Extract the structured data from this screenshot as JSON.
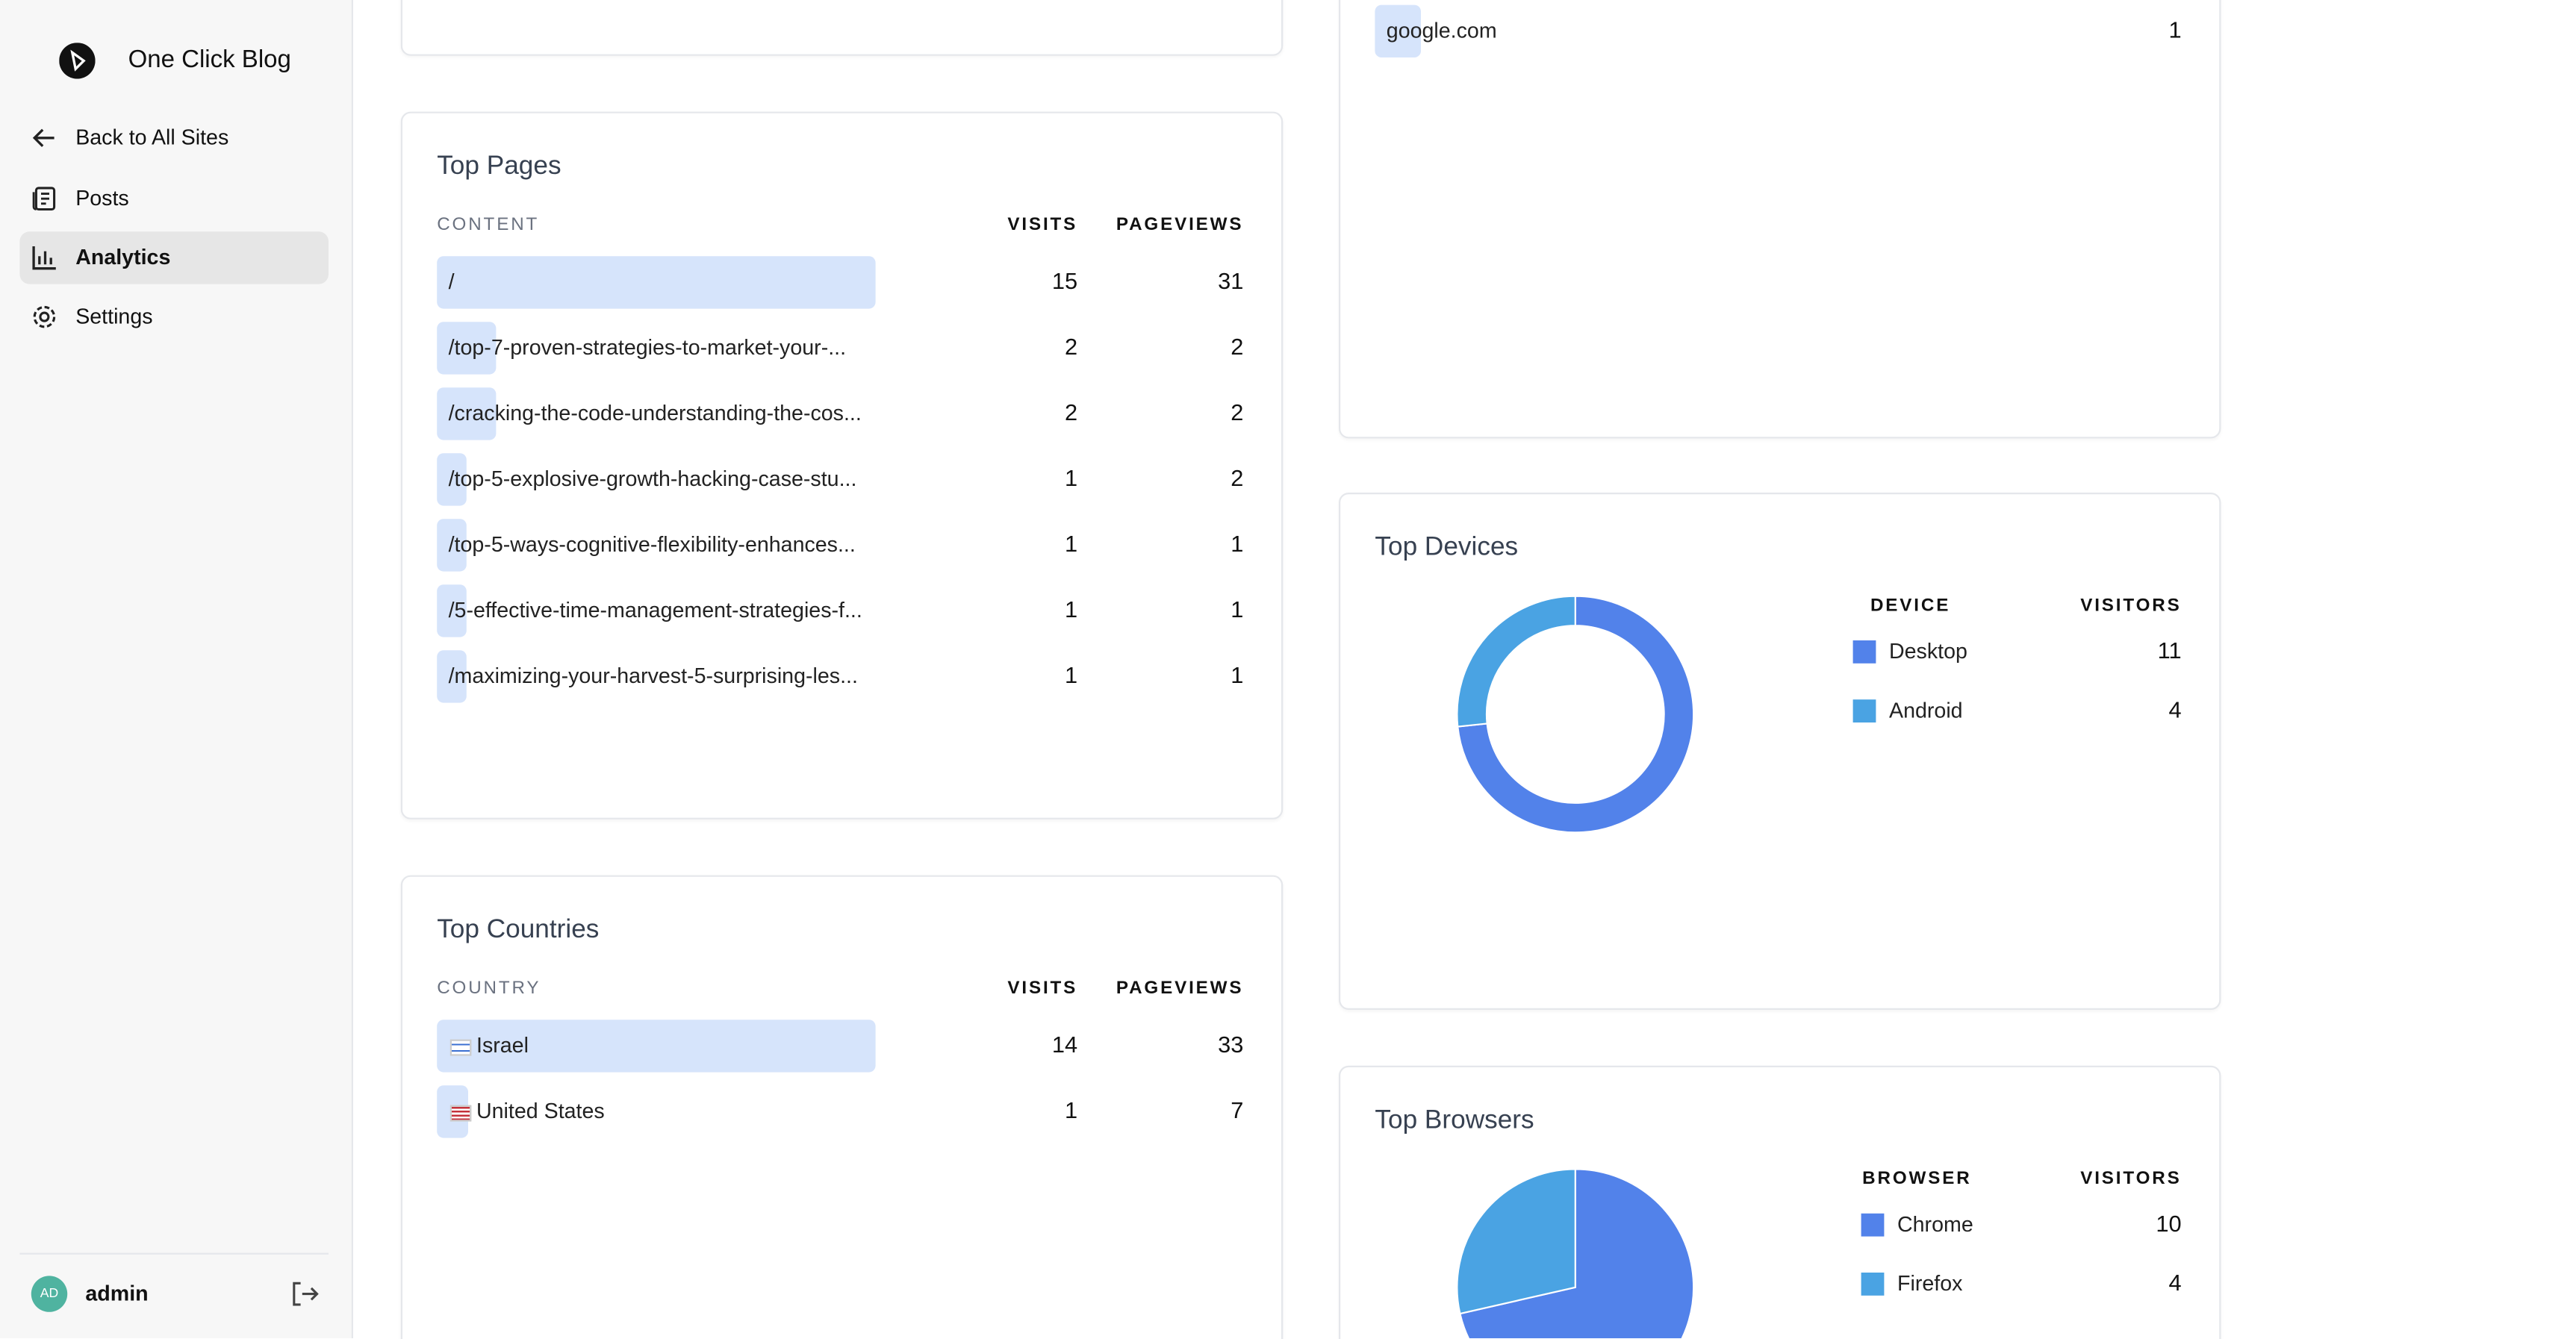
{
  "sidebar": {
    "site_name": "One Click Blog",
    "nav": [
      "Back to All Sites",
      "Posts",
      "Analytics",
      "Settings"
    ],
    "active": 2,
    "user": {
      "initials": "AD",
      "name": "admin"
    }
  },
  "referrers": {
    "rows": [
      {
        "name": "google.com",
        "visits": 1
      }
    ]
  },
  "top_pages": {
    "title": "Top Pages",
    "columns": [
      "CONTENT",
      "VISITS",
      "PAGEVIEWS"
    ],
    "rows": [
      [
        "/",
        15,
        31
      ],
      [
        "/top-7-proven-strategies-to-market-your-...",
        2,
        2
      ],
      [
        "/cracking-the-code-understanding-the-cos...",
        2,
        2
      ],
      [
        "/top-5-explosive-growth-hacking-case-stu...",
        1,
        2
      ],
      [
        "/top-5-ways-cognitive-flexibility-enhances...",
        1,
        1
      ],
      [
        "/5-effective-time-management-strategies-f...",
        1,
        1
      ],
      [
        "/maximizing-your-harvest-5-surprising-les...",
        1,
        1
      ]
    ]
  },
  "top_countries": {
    "title": "Top Countries",
    "columns": [
      "COUNTRY",
      "VISITS",
      "PAGEVIEWS"
    ],
    "rows": [
      [
        "Israel",
        14,
        33
      ],
      [
        "United States",
        1,
        7
      ]
    ]
  },
  "top_devices": {
    "title": "Top Devices",
    "columns": [
      "DEVICE",
      "VISITORS"
    ],
    "rows": [
      {
        "name": "Desktop",
        "visitors": 11,
        "color": "#5282ea"
      },
      {
        "name": "Android",
        "visitors": 4,
        "color": "#4aa3e3"
      }
    ]
  },
  "top_browsers": {
    "title": "Top Browsers",
    "columns": [
      "BROWSER",
      "VISITORS"
    ],
    "rows": [
      {
        "name": "Chrome",
        "visitors": 10,
        "color": "#5282ea"
      },
      {
        "name": "Firefox",
        "visitors": 4,
        "color": "#4aa3e3"
      }
    ]
  }
}
